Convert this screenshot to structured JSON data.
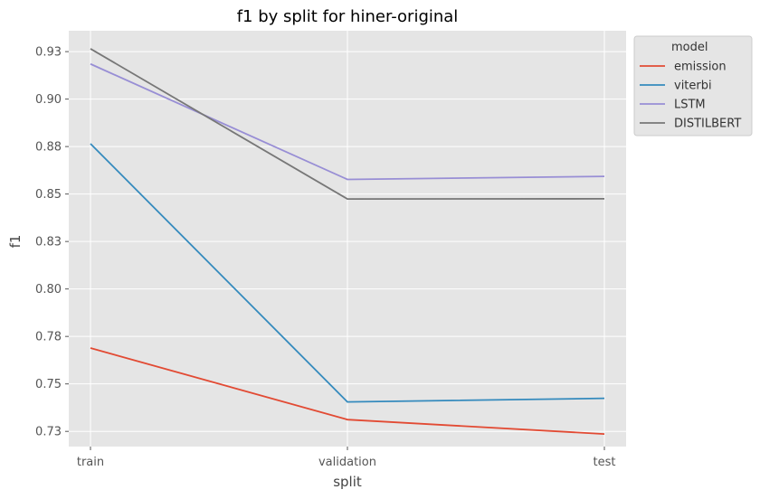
{
  "chart_data": {
    "type": "line",
    "title": "f1 by split for hiner-original",
    "xlabel": "split",
    "ylabel": "f1",
    "categories": [
      "train",
      "validation",
      "test"
    ],
    "ylim": [
      0.722,
      0.941
    ],
    "yticks": [
      0.73,
      0.755,
      0.78,
      0.805,
      0.83,
      0.855,
      0.88,
      0.905,
      0.93
    ],
    "ytick_labels": [
      "0.73",
      "0.75",
      "0.78",
      "0.80",
      "0.83",
      "0.85",
      "0.88",
      "0.90",
      "0.93"
    ],
    "grid": true,
    "legend_title": "model",
    "legend_position": "outside-top-right",
    "series": [
      {
        "name": "emission",
        "color": "#e24a33",
        "values": [
          0.7739,
          0.7362,
          0.7286
        ]
      },
      {
        "name": "viterbi",
        "color": "#348abd",
        "values": [
          0.8815,
          0.7455,
          0.7474
        ]
      },
      {
        "name": "LSTM",
        "color": "#988ed5",
        "values": [
          0.9235,
          0.8627,
          0.8643
        ]
      },
      {
        "name": "DISTILBERT",
        "color": "#777777",
        "values": [
          0.9315,
          0.8524,
          0.8525
        ]
      }
    ]
  }
}
